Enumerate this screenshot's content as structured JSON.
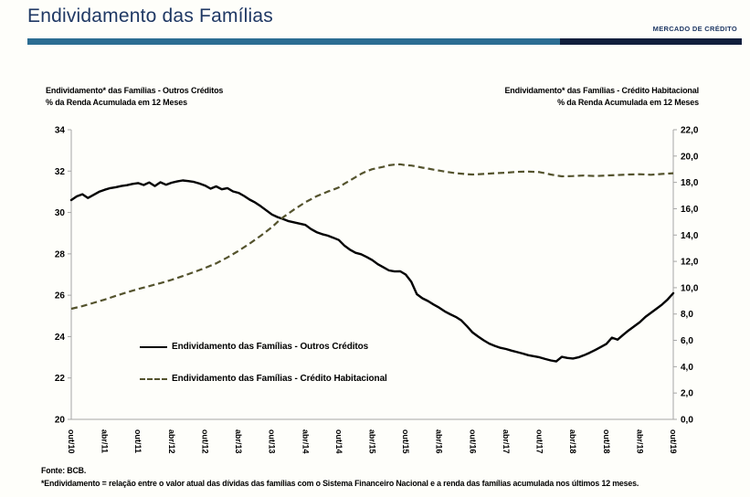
{
  "header": {
    "title": "Endividamento das Famílias",
    "corner_label": "MERCADO DE CRÉDITO",
    "title_color": "#1f3864",
    "rule_blue": "#2c6d92",
    "rule_dark": "#111f3c"
  },
  "footer": {
    "source": "Fonte: BCB.",
    "note": "*Endividamento = relação entre o valor atual das dívidas das famílias com o Sistema Financeiro Nacional e a renda das famílias acumulada nos últimos 12 meses."
  },
  "chart_data": {
    "type": "line",
    "title_left_line1": "Endividamento* das Famílias - Outros Créditos",
    "title_left_line2": "% da Renda Acumulada em 12 Meses",
    "title_right_line1": "Endividamento* das Famílias - Crédito Habitacional",
    "title_right_line2": "% da Renda Acumulada em 12 Meses",
    "x_tick_labels": [
      "out/10",
      "abr/11",
      "out/11",
      "abr/12",
      "out/12",
      "abr/13",
      "out/13",
      "abr/14",
      "out/14",
      "abr/15",
      "out/15",
      "abr/16",
      "out/16",
      "abr/17",
      "out/17",
      "abr/18",
      "out/18",
      "abr/19",
      "out/19"
    ],
    "x_month_span": 108,
    "x_tick_label_rotation_deg": 90,
    "grid": "off",
    "legend_position": "inside-left-bottom",
    "axis_left": {
      "min": 20,
      "max": 34,
      "step": 2,
      "decimal_comma": false
    },
    "axis_right": {
      "min": 0,
      "max": 22,
      "step": 2,
      "decimal_comma": true
    },
    "axis_line_color": "#a6a6a6",
    "series": [
      {
        "name": "Endividamento das Famílias - Outros Créditos",
        "axis": "left",
        "style": "solid",
        "color": "#000000",
        "points": [
          [
            0,
            30.6
          ],
          [
            1,
            30.78
          ],
          [
            2,
            30.88
          ],
          [
            3,
            30.7
          ],
          [
            4,
            30.85
          ],
          [
            5,
            31.0
          ],
          [
            6,
            31.1
          ],
          [
            7,
            31.18
          ],
          [
            8,
            31.22
          ],
          [
            9,
            31.28
          ],
          [
            10,
            31.32
          ],
          [
            11,
            31.38
          ],
          [
            12,
            31.42
          ],
          [
            13,
            31.33
          ],
          [
            14,
            31.45
          ],
          [
            15,
            31.28
          ],
          [
            16,
            31.46
          ],
          [
            17,
            31.34
          ],
          [
            18,
            31.44
          ],
          [
            19,
            31.5
          ],
          [
            20,
            31.55
          ],
          [
            21,
            31.52
          ],
          [
            22,
            31.48
          ],
          [
            23,
            31.4
          ],
          [
            24,
            31.3
          ],
          [
            25,
            31.15
          ],
          [
            26,
            31.26
          ],
          [
            27,
            31.12
          ],
          [
            28,
            31.18
          ],
          [
            29,
            31.02
          ],
          [
            30,
            30.95
          ],
          [
            31,
            30.8
          ],
          [
            32,
            30.62
          ],
          [
            33,
            30.48
          ],
          [
            34,
            30.3
          ],
          [
            35,
            30.1
          ],
          [
            36,
            29.9
          ],
          [
            37,
            29.78
          ],
          [
            38,
            29.68
          ],
          [
            39,
            29.58
          ],
          [
            40,
            29.52
          ],
          [
            41,
            29.46
          ],
          [
            42,
            29.4
          ],
          [
            43,
            29.2
          ],
          [
            44,
            29.05
          ],
          [
            45,
            28.95
          ],
          [
            46,
            28.88
          ],
          [
            47,
            28.78
          ],
          [
            48,
            28.67
          ],
          [
            49,
            28.4
          ],
          [
            50,
            28.2
          ],
          [
            51,
            28.05
          ],
          [
            52,
            27.98
          ],
          [
            53,
            27.85
          ],
          [
            54,
            27.7
          ],
          [
            55,
            27.5
          ],
          [
            56,
            27.35
          ],
          [
            57,
            27.2
          ],
          [
            58,
            27.15
          ],
          [
            59,
            27.16
          ],
          [
            60,
            27.0
          ],
          [
            61,
            26.65
          ],
          [
            62,
            26.05
          ],
          [
            63,
            25.85
          ],
          [
            64,
            25.72
          ],
          [
            65,
            25.55
          ],
          [
            66,
            25.4
          ],
          [
            67,
            25.22
          ],
          [
            68,
            25.08
          ],
          [
            69,
            24.95
          ],
          [
            70,
            24.78
          ],
          [
            71,
            24.5
          ],
          [
            72,
            24.2
          ],
          [
            73,
            24.0
          ],
          [
            74,
            23.82
          ],
          [
            75,
            23.66
          ],
          [
            76,
            23.55
          ],
          [
            77,
            23.46
          ],
          [
            78,
            23.4
          ],
          [
            79,
            23.32
          ],
          [
            80,
            23.25
          ],
          [
            81,
            23.18
          ],
          [
            82,
            23.1
          ],
          [
            83,
            23.05
          ],
          [
            84,
            23.0
          ],
          [
            85,
            22.92
          ],
          [
            86,
            22.85
          ],
          [
            87,
            22.8
          ],
          [
            88,
            23.02
          ],
          [
            89,
            22.97
          ],
          [
            90,
            22.94
          ],
          [
            91,
            23.0
          ],
          [
            92,
            23.1
          ],
          [
            93,
            23.22
          ],
          [
            94,
            23.35
          ],
          [
            95,
            23.5
          ],
          [
            96,
            23.65
          ],
          [
            97,
            23.95
          ],
          [
            98,
            23.85
          ],
          [
            99,
            24.08
          ],
          [
            100,
            24.3
          ],
          [
            101,
            24.5
          ],
          [
            102,
            24.7
          ],
          [
            103,
            24.95
          ],
          [
            104,
            25.15
          ],
          [
            105,
            25.35
          ],
          [
            106,
            25.55
          ],
          [
            107,
            25.8
          ],
          [
            108,
            26.1
          ]
        ]
      },
      {
        "name": "Endividamento das Famílias - Crédito Habitacional",
        "axis": "right",
        "style": "dashed",
        "color": "#54532d",
        "points": [
          [
            0,
            8.4
          ],
          [
            2,
            8.6
          ],
          [
            4,
            8.85
          ],
          [
            6,
            9.1
          ],
          [
            8,
            9.38
          ],
          [
            10,
            9.65
          ],
          [
            12,
            9.9
          ],
          [
            14,
            10.12
          ],
          [
            16,
            10.35
          ],
          [
            18,
            10.6
          ],
          [
            20,
            10.88
          ],
          [
            22,
            11.18
          ],
          [
            24,
            11.5
          ],
          [
            26,
            11.85
          ],
          [
            28,
            12.3
          ],
          [
            30,
            12.8
          ],
          [
            32,
            13.35
          ],
          [
            34,
            13.95
          ],
          [
            36,
            14.6
          ],
          [
            37,
            15.0
          ],
          [
            38,
            15.35
          ],
          [
            39,
            15.65
          ],
          [
            40,
            15.95
          ],
          [
            41,
            16.22
          ],
          [
            42,
            16.5
          ],
          [
            43,
            16.72
          ],
          [
            44,
            16.95
          ],
          [
            45,
            17.12
          ],
          [
            46,
            17.3
          ],
          [
            47,
            17.45
          ],
          [
            48,
            17.62
          ],
          [
            49,
            17.9
          ],
          [
            50,
            18.15
          ],
          [
            51,
            18.4
          ],
          [
            52,
            18.65
          ],
          [
            53,
            18.85
          ],
          [
            54,
            19.0
          ],
          [
            55,
            19.1
          ],
          [
            56,
            19.18
          ],
          [
            57,
            19.3
          ],
          [
            58,
            19.35
          ],
          [
            59,
            19.38
          ],
          [
            60,
            19.3
          ],
          [
            61,
            19.28
          ],
          [
            62,
            19.2
          ],
          [
            63,
            19.12
          ],
          [
            64,
            19.05
          ],
          [
            65,
            18.97
          ],
          [
            66,
            18.9
          ],
          [
            67,
            18.82
          ],
          [
            68,
            18.76
          ],
          [
            69,
            18.7
          ],
          [
            70,
            18.66
          ],
          [
            71,
            18.62
          ],
          [
            72,
            18.6
          ],
          [
            74,
            18.64
          ],
          [
            76,
            18.7
          ],
          [
            78,
            18.74
          ],
          [
            80,
            18.8
          ],
          [
            82,
            18.82
          ],
          [
            84,
            18.78
          ],
          [
            85,
            18.7
          ],
          [
            86,
            18.6
          ],
          [
            87,
            18.52
          ],
          [
            88,
            18.46
          ],
          [
            90,
            18.48
          ],
          [
            92,
            18.52
          ],
          [
            94,
            18.48
          ],
          [
            96,
            18.52
          ],
          [
            98,
            18.56
          ],
          [
            100,
            18.6
          ],
          [
            102,
            18.62
          ],
          [
            104,
            18.58
          ],
          [
            106,
            18.64
          ],
          [
            108,
            18.7
          ]
        ]
      }
    ]
  }
}
